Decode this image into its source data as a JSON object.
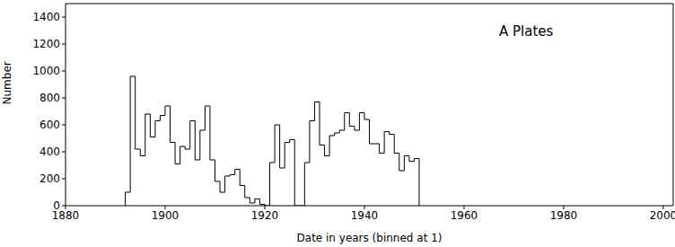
{
  "chart_data": {
    "type": "histogram",
    "title": "A Plates",
    "x_label": "Date in years (binned at 1)",
    "y_label": "Number",
    "bins": [
      1892,
      1893,
      1894,
      1895,
      1896,
      1897,
      1898,
      1899,
      1900,
      1901,
      1902,
      1903,
      1904,
      1905,
      1906,
      1907,
      1908,
      1909,
      1910,
      1911,
      1912,
      1913,
      1914,
      1915,
      1916,
      1917,
      1918,
      1919,
      1920,
      1921,
      1922,
      1923,
      1924,
      1925,
      1926,
      1927,
      1928,
      1929,
      1930,
      1931,
      1932,
      1933,
      1934,
      1935,
      1936,
      1937,
      1938,
      1939,
      1940,
      1941,
      1942,
      1943,
      1944,
      1945,
      1946,
      1947,
      1948,
      1949,
      1950,
      1951
    ],
    "values": [
      100,
      960,
      420,
      370,
      680,
      510,
      630,
      670,
      740,
      470,
      310,
      440,
      420,
      630,
      340,
      560,
      740,
      340,
      180,
      100,
      220,
      230,
      270,
      150,
      60,
      20,
      50,
      10,
      0,
      320,
      600,
      280,
      470,
      490,
      0,
      0,
      320,
      630,
      770,
      450,
      370,
      520,
      540,
      560,
      690,
      590,
      560,
      690,
      640,
      460,
      460,
      390,
      550,
      530,
      390,
      260,
      370,
      330,
      350
    ],
    "color": "#000000",
    "xlim": [
      1880,
      2002
    ],
    "xticks": [
      1880,
      1900,
      1920,
      1940,
      1960,
      1980,
      2000
    ],
    "ylim": [
      0,
      1500
    ],
    "yticks": [
      0,
      200,
      400,
      600,
      800,
      1000,
      1200,
      1400
    ]
  }
}
